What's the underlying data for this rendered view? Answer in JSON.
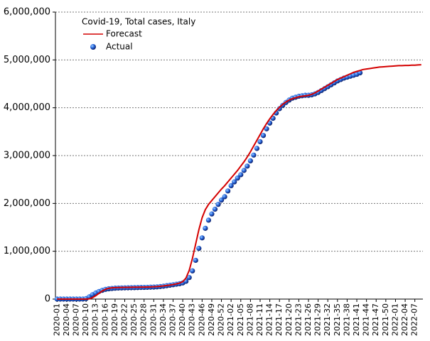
{
  "chart_data": {
    "type": "line",
    "title": "Covid-19, Total cases, Italy",
    "legend": "upper left",
    "grid": true,
    "categories": [
      "2020-01",
      null,
      null,
      "2020-04",
      null,
      null,
      "2020-07",
      null,
      null,
      "2020-10",
      null,
      null,
      "2020-13",
      null,
      null,
      "2020-16",
      null,
      null,
      "2020-19",
      null,
      null,
      "2020-22",
      null,
      null,
      "2020-25",
      null,
      null,
      "2020-28",
      null,
      null,
      "2020-31",
      null,
      null,
      "2020-34",
      null,
      null,
      "2020-37",
      null,
      null,
      "2020-40",
      null,
      null,
      "2020-43",
      null,
      null,
      "2020-46",
      null,
      null,
      "2020-49",
      null,
      null,
      "2020-52",
      null,
      null,
      "2021-02",
      null,
      null,
      "2021-05",
      null,
      null,
      "2021-08",
      null,
      null,
      "2021-11",
      null,
      null,
      "2021-14",
      null,
      null,
      "2021-17",
      null,
      null,
      "2021-20",
      null,
      null,
      "2021-23",
      null,
      null,
      "2021-26",
      null,
      null,
      "2021-29",
      null,
      null,
      "2021-32",
      null,
      null,
      "2021-35",
      null,
      null,
      "2021-38",
      null,
      null,
      "2021-41",
      null,
      null,
      "2021-44",
      null,
      null,
      "2021-47",
      null,
      null,
      "2021-50",
      null,
      null,
      "2022-01",
      null,
      null,
      "2022-04",
      null,
      null,
      "2022-07",
      null,
      null
    ],
    "ylim": [
      0,
      6000000
    ],
    "yticks": [
      0,
      {
        "value": 1000000,
        "label": "1,000,000"
      },
      {
        "value": 2000000,
        "label": "2,000,000"
      },
      {
        "value": 3000000,
        "label": "3,000,000"
      },
      {
        "value": 4000000,
        "label": "4,000,000"
      },
      {
        "value": 5000000,
        "label": "5,000,000"
      },
      {
        "value": 6000000,
        "label": "6,000,000"
      }
    ],
    "series": [
      {
        "name": "Forecast",
        "color": "#d40000",
        "style": "line",
        "values": [
          0,
          0,
          0,
          0,
          0,
          0,
          0,
          0,
          0,
          0,
          5000,
          30000,
          70000,
          120000,
          170000,
          205000,
          225000,
          235000,
          240000,
          242000,
          244000,
          245000,
          246000,
          247000,
          248000,
          249000,
          250000,
          251000,
          253000,
          255000,
          258000,
          262000,
          268000,
          275000,
          284000,
          294000,
          305000,
          318000,
          335000,
          365000,
          440000,
          600000,
          850000,
          1150000,
          1450000,
          1700000,
          1870000,
          1980000,
          2060000,
          2140000,
          2220000,
          2300000,
          2370000,
          2450000,
          2530000,
          2610000,
          2690000,
          2780000,
          2870000,
          2970000,
          3080000,
          3200000,
          3320000,
          3440000,
          3560000,
          3670000,
          3770000,
          3860000,
          3940000,
          4010000,
          4070000,
          4120000,
          4160000,
          4190000,
          4210000,
          4230000,
          4240000,
          4250000,
          4260000,
          4280000,
          4310000,
          4350000,
          4390000,
          4430000,
          4470000,
          4510000,
          4550000,
          4590000,
          4620000,
          4650000,
          4680000,
          4710000,
          4740000,
          4760000,
          4780000,
          4800000,
          4810000,
          4820000,
          4830000,
          4840000,
          4850000,
          4855000,
          4860000,
          4865000,
          4870000,
          4875000,
          4880000,
          4880000,
          4885000,
          4885000,
          4890000,
          4890000,
          4895000,
          4900000
        ]
      },
      {
        "name": "Actual",
        "color": "#1f4fd6",
        "style": "markers",
        "values": [
          0,
          0,
          0,
          0,
          0,
          0,
          0,
          0,
          1000,
          10000,
          47000,
          92000,
          128000,
          159000,
          183000,
          203000,
          215000,
          222000,
          228000,
          231000,
          233000,
          235000,
          236000,
          238000,
          239000,
          241000,
          243000,
          244000,
          246000,
          249000,
          251000,
          255000,
          262000,
          269000,
          280000,
          290000,
          300000,
          311000,
          321000,
          338000,
          372000,
          450000,
          590000,
          810000,
          1060000,
          1280000,
          1480000,
          1650000,
          1780000,
          1880000,
          1980000,
          2070000,
          2140000,
          2260000,
          2370000,
          2450000,
          2530000,
          2600000,
          2690000,
          2780000,
          2890000,
          3010000,
          3150000,
          3290000,
          3420000,
          3560000,
          3680000,
          3780000,
          3890000,
          3980000,
          4050000,
          4110000,
          4160000,
          4200000,
          4220000,
          4240000,
          4250000,
          4260000,
          4260000,
          4270000,
          4290000,
          4320000,
          4360000,
          4400000,
          4440000,
          4480000,
          4520000,
          4560000,
          4590000,
          4620000,
          4640000,
          4660000,
          4680000,
          4700000,
          4730000,
          null,
          null,
          null,
          null,
          null,
          null,
          null,
          null,
          null,
          null,
          null,
          null,
          null,
          null,
          null,
          null,
          null,
          null,
          null
        ]
      }
    ]
  }
}
